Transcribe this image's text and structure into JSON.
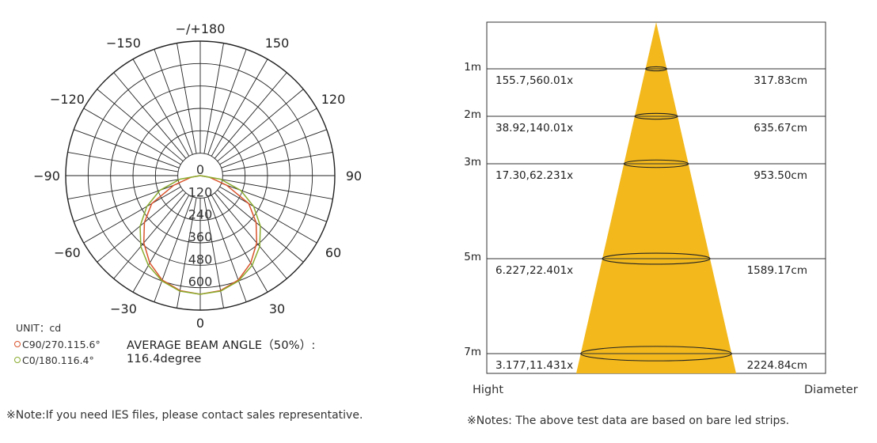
{
  "chart_data": [
    {
      "type": "polar",
      "unit_label": "UNIT：cd",
      "angle_labels": [
        {
          "text": "0",
          "angle": 0
        },
        {
          "text": "30",
          "angle": 30
        },
        {
          "text": "60",
          "angle": 60
        },
        {
          "text": "90",
          "angle": 90
        },
        {
          "text": "120",
          "angle": 120
        },
        {
          "text": "150",
          "angle": 150
        },
        {
          "text": "−/+180",
          "angle": 180
        },
        {
          "text": "−150",
          "angle": -150
        },
        {
          "text": "−120",
          "angle": -120
        },
        {
          "text": "−90",
          "angle": -90
        },
        {
          "text": "−60",
          "angle": -60
        },
        {
          "text": "−30",
          "angle": -30
        }
      ],
      "radial_ticks": [
        "0",
        "120",
        "240",
        "360",
        "480",
        "600"
      ],
      "rmax": 720,
      "series": [
        {
          "name": "C90/270.115.6°",
          "color": "#d9532b",
          "points": [
            [
              -90,
              0
            ],
            [
              -80,
              50
            ],
            [
              -70,
              150
            ],
            [
              -60,
              300
            ],
            [
              -50,
              390
            ],
            [
              -40,
              470
            ],
            [
              -30,
              540
            ],
            [
              -20,
              595
            ],
            [
              -10,
              625
            ],
            [
              0,
              635
            ],
            [
              10,
              625
            ],
            [
              20,
              595
            ],
            [
              30,
              540
            ],
            [
              40,
              470
            ],
            [
              50,
              390
            ],
            [
              60,
              300
            ],
            [
              70,
              150
            ],
            [
              80,
              50
            ],
            [
              90,
              0
            ]
          ]
        },
        {
          "name": "C0/180.116.4°",
          "color": "#8aab2e",
          "points": [
            [
              -90,
              0
            ],
            [
              -80,
              110
            ],
            [
              -70,
              230
            ],
            [
              -60,
              330
            ],
            [
              -50,
              420
            ],
            [
              -40,
              495
            ],
            [
              -30,
              555
            ],
            [
              -20,
              600
            ],
            [
              -10,
              628
            ],
            [
              0,
              635
            ],
            [
              10,
              628
            ],
            [
              20,
              600
            ],
            [
              30,
              555
            ],
            [
              40,
              495
            ],
            [
              50,
              420
            ],
            [
              60,
              330
            ],
            [
              70,
              230
            ],
            [
              80,
              110
            ],
            [
              90,
              0
            ]
          ]
        }
      ]
    },
    {
      "type": "table",
      "rows": [
        {
          "height_m": 1,
          "height_label": "1m",
          "illuminance": "155.7,560.01x",
          "diameter": "317.83cm"
        },
        {
          "height_m": 2,
          "height_label": "2m",
          "illuminance": "38.92,140.01x",
          "diameter": "635.67cm"
        },
        {
          "height_m": 3,
          "height_label": "3m",
          "illuminance": "17.30,62.231x",
          "diameter": "953.50cm"
        },
        {
          "height_m": 5,
          "height_label": "5m",
          "illuminance": "6.227,22.401x",
          "diameter": "1589.17cm"
        },
        {
          "height_m": 7,
          "height_label": "7m",
          "illuminance": "3.177,11.431x",
          "diameter": "2224.84cm"
        }
      ],
      "xlabel_left": "Hight",
      "xlabel_right": "Diameter",
      "cone_color": "#f2b81c"
    }
  ],
  "beam": {
    "label": "AVERAGE BEAM ANGLE（50%）:",
    "value": "116.4degree"
  },
  "notes": {
    "left": "※Note:If you need IES files, please contact sales representative.",
    "right": "※Notes: The above test data are based on bare led strips."
  }
}
